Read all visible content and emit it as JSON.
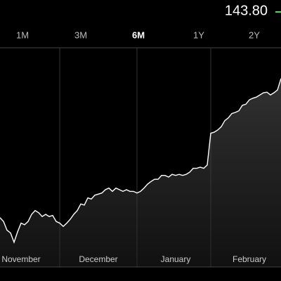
{
  "price": "143.80",
  "ranges": [
    "1M",
    "3M",
    "6M",
    "1Y",
    "2Y"
  ],
  "selected_range": 2,
  "chart_data": {
    "type": "line",
    "color": "#ffffff",
    "months": [
      "November",
      "December",
      "January",
      "February"
    ],
    "ylim": [
      110,
      150
    ],
    "values": [
      119.0,
      118.3,
      116.7,
      116.2,
      114.5,
      116.4,
      118.0,
      117.7,
      118.3,
      119.6,
      120.3,
      119.9,
      119.2,
      119.6,
      119.2,
      119.4,
      118.3,
      118.0,
      117.4,
      118.0,
      118.7,
      119.6,
      120.3,
      121.5,
      121.3,
      122.6,
      122.4,
      123.1,
      123.3,
      123.5,
      124.1,
      124.4,
      123.8,
      124.4,
      124.1,
      123.8,
      124.1,
      123.8,
      123.8,
      123.5,
      123.8,
      124.4,
      125.1,
      125.6,
      126.0,
      126.0,
      126.7,
      126.7,
      126.4,
      126.9,
      126.7,
      126.9,
      126.7,
      126.9,
      127.3,
      128.0,
      128.0,
      128.2,
      128.0,
      128.6,
      134.4,
      134.6,
      135.0,
      135.6,
      136.7,
      137.2,
      138.0,
      138.2,
      138.5,
      139.5,
      139.7,
      140.5,
      140.8,
      141.0,
      141.4,
      141.8,
      141.9,
      141.4,
      141.8,
      142.3,
      144.4
    ]
  }
}
